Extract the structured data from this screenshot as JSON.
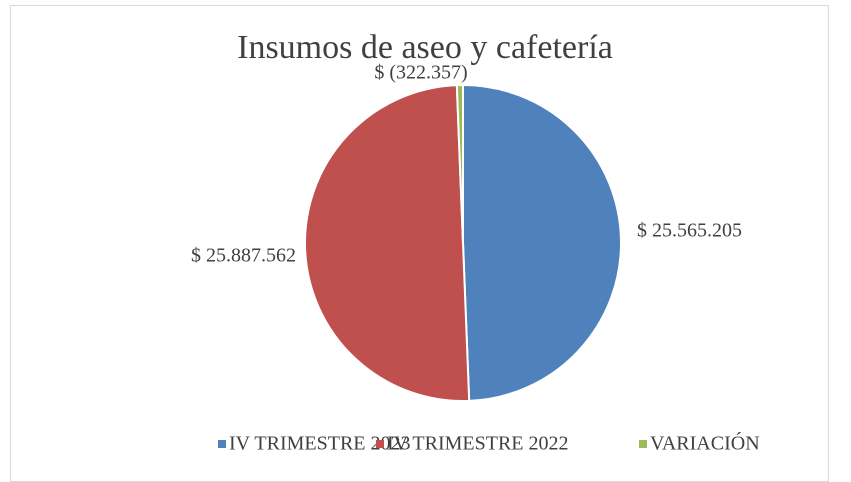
{
  "chart_data": {
    "type": "pie",
    "title": "Insumos de aseo y cafetería",
    "categories": [
      "IV TRIMESTRE 2023",
      "IV TRIMESTRE 2022",
      "VARIACIÓN"
    ],
    "values": [
      25565205,
      25887562,
      -322357
    ],
    "value_labels": [
      "$ 25.565.205",
      "$ 25.887.562",
      "$ (322.357)"
    ],
    "colors": [
      "#4f81bd",
      "#c0504d",
      "#9bbb59"
    ],
    "legend": "bottom"
  }
}
